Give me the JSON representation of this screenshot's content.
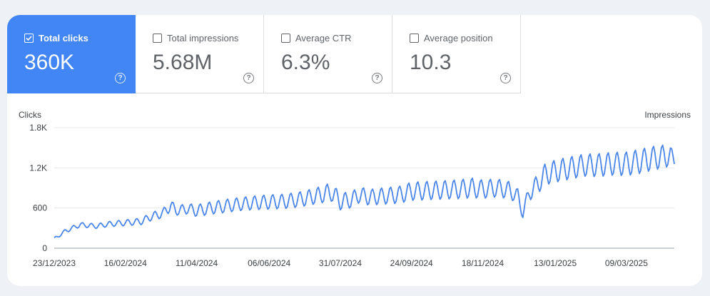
{
  "metrics": [
    {
      "label": "Total clicks",
      "value": "360K",
      "checked": true
    },
    {
      "label": "Total impressions",
      "value": "5.68M",
      "checked": false
    },
    {
      "label": "Average CTR",
      "value": "6.3%",
      "checked": false
    },
    {
      "label": "Average position",
      "value": "10.3",
      "checked": false
    }
  ],
  "help_icon_glyph": "?",
  "colors": {
    "accent": "#4285f4",
    "line": "#4a86e8"
  },
  "chart_data": {
    "type": "line",
    "ylabel": "Clicks",
    "y2label": "Impressions",
    "ylim": [
      0,
      1800
    ],
    "yticks": [
      0,
      600,
      1200,
      1800
    ],
    "ytick_labels": [
      "0",
      "600",
      "1.2K",
      "1.8K"
    ],
    "xlim": [
      "2023-12-23",
      "2025-04-15"
    ],
    "xticks": [
      "2023-12-23",
      "2024-02-16",
      "2024-04-11",
      "2024-06-06",
      "2024-07-31",
      "2024-09-24",
      "2024-11-18",
      "2025-01-13",
      "2025-03-09"
    ],
    "xtick_labels": [
      "23/12/2023",
      "16/02/2024",
      "11/04/2024",
      "06/06/2024",
      "31/07/2024",
      "24/09/2024",
      "18/11/2024",
      "13/01/2025",
      "09/03/2025"
    ],
    "grid": true,
    "series": [
      {
        "name": "Clicks",
        "x": [
          "2023-12-23",
          "2024-01-01",
          "2024-01-12",
          "2024-01-25",
          "2024-02-03",
          "2024-02-16",
          "2024-02-28",
          "2024-03-08",
          "2024-03-16",
          "2024-03-22",
          "2024-03-26",
          "2024-04-04",
          "2024-04-11",
          "2024-04-22",
          "2024-05-03",
          "2024-05-15",
          "2024-05-27",
          "2024-06-06",
          "2024-06-18",
          "2024-06-30",
          "2024-07-12",
          "2024-07-24",
          "2024-07-31",
          "2024-08-08",
          "2024-08-15",
          "2024-08-22",
          "2024-09-03",
          "2024-09-15",
          "2024-09-24",
          "2024-10-06",
          "2024-10-18",
          "2024-10-30",
          "2024-11-10",
          "2024-11-18",
          "2024-11-28",
          "2024-12-08",
          "2024-12-15",
          "2024-12-19",
          "2024-12-24",
          "2024-12-29",
          "2025-01-05",
          "2025-01-13",
          "2025-01-25",
          "2025-02-05",
          "2025-02-15",
          "2025-02-26",
          "2025-03-09",
          "2025-03-20",
          "2025-03-31",
          "2025-04-07",
          "2025-04-12",
          "2025-04-15"
        ],
        "y": [
          140,
          260,
          350,
          330,
          360,
          380,
          400,
          480,
          520,
          640,
          560,
          590,
          560,
          600,
          630,
          660,
          680,
          690,
          700,
          730,
          780,
          840,
          700,
          720,
          800,
          760,
          780,
          800,
          850,
          860,
          870,
          880,
          900,
          880,
          900,
          870,
          780,
          520,
          840,
          920,
          1100,
          1150,
          1200,
          1240,
          1240,
          1260,
          1260,
          1300,
          1350,
          1370,
          1380,
          1300
        ],
        "amp": [
          20,
          30,
          35,
          35,
          40,
          45,
          50,
          60,
          70,
          90,
          70,
          80,
          90,
          95,
          100,
          100,
          105,
          110,
          110,
          115,
          120,
          140,
          130,
          120,
          120,
          120,
          125,
          130,
          140,
          140,
          140,
          145,
          150,
          140,
          140,
          130,
          110,
          80,
          130,
          150,
          160,
          170,
          170,
          170,
          175,
          175,
          180,
          185,
          180,
          175,
          150,
          100
        ]
      }
    ]
  }
}
